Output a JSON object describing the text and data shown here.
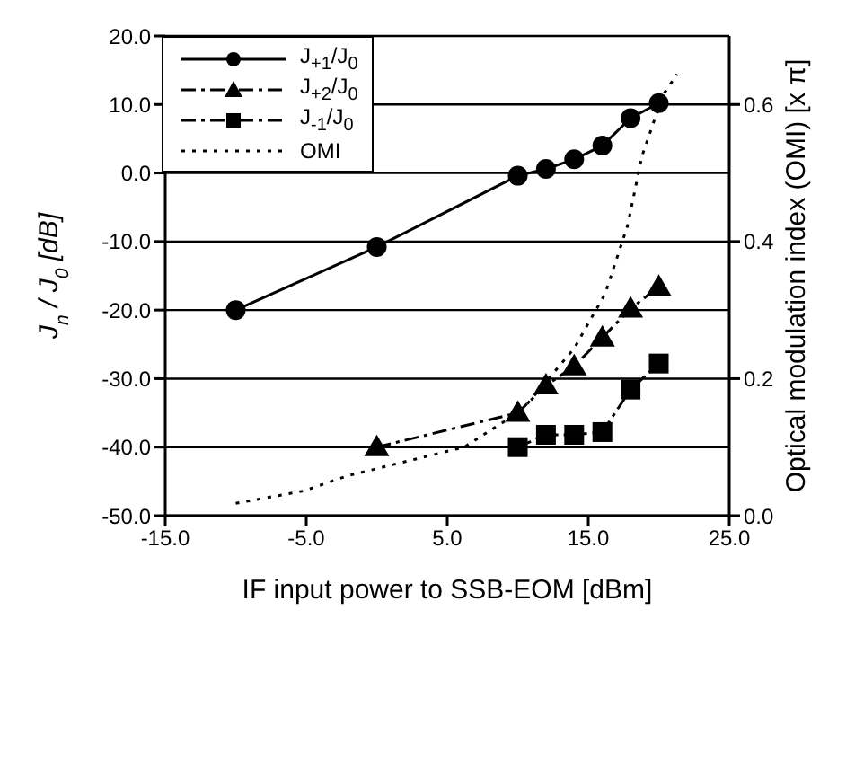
{
  "chart_data": {
    "type": "line",
    "xlabel": "IF input power to SSB-EOM [dBm]",
    "ylabel": "J$_{n}$ / J$_{0}$  [dB]",
    "y2label": "Optical modulation index (OMI) [x π]",
    "xlim": [
      -15,
      25
    ],
    "xticks": [
      {
        "value": -15,
        "label": "-15.0"
      },
      {
        "value": -5,
        "label": "-5.0"
      },
      {
        "value": 5,
        "label": "5.0"
      },
      {
        "value": 15,
        "label": "15.0"
      },
      {
        "value": 25,
        "label": "25.0"
      }
    ],
    "ylim": [
      -50,
      20
    ],
    "yticks": [
      {
        "value": -50,
        "label": "-50.0"
      },
      {
        "value": -40,
        "label": "-40.0"
      },
      {
        "value": -30,
        "label": "-30.0"
      },
      {
        "value": -20,
        "label": "-20.0"
      },
      {
        "value": -10,
        "label": "-10.0"
      },
      {
        "value": 0,
        "label": "0.0"
      },
      {
        "value": 10,
        "label": "10.0"
      },
      {
        "value": 20,
        "label": "20.0"
      }
    ],
    "y2lim": [
      0,
      0.7
    ],
    "y2ticks": [
      {
        "value": 0,
        "label": "0.0"
      },
      0.2,
      0.4,
      0.6
    ],
    "grid": "y",
    "legend": "top left",
    "series": [
      {
        "name": "J$_{+1}$/J$_{0}$",
        "color": "#000000",
        "marker": "circle",
        "line_style": "solid",
        "x": [
          -10,
          0,
          10,
          12,
          14,
          16,
          18,
          20
        ],
        "values": [
          -20,
          -10.8,
          -0.4,
          0.6,
          2,
          4,
          8,
          10.2
        ]
      },
      {
        "name": "J$_{+2}$/J$_{0}$",
        "color": "#000000",
        "marker": "triangle",
        "line_style": "dashed",
        "x": [
          0,
          10,
          12,
          14,
          16,
          18,
          20
        ],
        "values": [
          -40,
          -35,
          -31,
          -28.2,
          -24,
          -19.8,
          -16.6
        ]
      },
      {
        "name": "J$_{-1}$/J$_{0}$",
        "color": "#000000",
        "marker": "square",
        "line_style": "dashed",
        "x": [
          10,
          12,
          14,
          16,
          18,
          20
        ],
        "values": [
          -40,
          -38.2,
          -38.2,
          -37.8,
          -31.6,
          -27.8
        ]
      },
      {
        "name": "OMI",
        "color": "#000000",
        "marker": "none",
        "line_style": "dotted",
        "axis": "y2",
        "x": [
          -10,
          -5.2,
          -2.1,
          6.2,
          10.3,
          14,
          16.2,
          17.8,
          18.8,
          20.3,
          21.3
        ],
        "values": [
          0.018,
          0.036,
          0.058,
          0.1,
          0.154,
          0.244,
          0.324,
          0.424,
          0.524,
          0.614,
          0.644
        ]
      }
    ]
  }
}
